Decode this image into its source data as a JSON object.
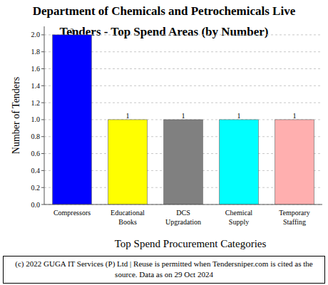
{
  "chart_data": {
    "type": "bar",
    "title": "Department of Chemicals and Petrochemicals Live Tenders - Top Spend Areas (by Number)",
    "x_label": "Top Spend Procurement Categories",
    "y_label": "Number of Tenders",
    "categories": [
      "Compressors",
      "Educational Books",
      "DCS Upgradation",
      "Chemical Supply",
      "Temporary Staffing"
    ],
    "values": [
      2,
      1,
      1,
      1,
      1
    ],
    "colors": [
      "#0000ff",
      "#ffff00",
      "#808080",
      "#00ffff",
      "#ffafaf"
    ],
    "ylim": [
      0,
      2.1
    ],
    "yticks": [
      {
        "value": 0,
        "label": "0.0"
      },
      {
        "value": 0.2,
        "label": "0.2"
      },
      {
        "value": 0.4,
        "label": "0.4"
      },
      {
        "value": 0.6,
        "label": "0.6"
      },
      {
        "value": 0.8,
        "label": "0.8"
      },
      {
        "value": 1,
        "label": "1.0"
      },
      {
        "value": 1.2,
        "label": "1.2"
      },
      {
        "value": 1.4,
        "label": "1.4"
      },
      {
        "value": 1.6,
        "label": "1.6"
      },
      {
        "value": 1.8,
        "label": "1.8"
      },
      {
        "value": 2,
        "label": "2.0"
      }
    ],
    "grid": true,
    "data_labels": true
  },
  "footer": {
    "text": "(c) 2022 GUGA IT Services (P) Ltd | Reuse is permitted when Tendersniper.com is cited as the source. Data as on 29 Oct 2024"
  }
}
